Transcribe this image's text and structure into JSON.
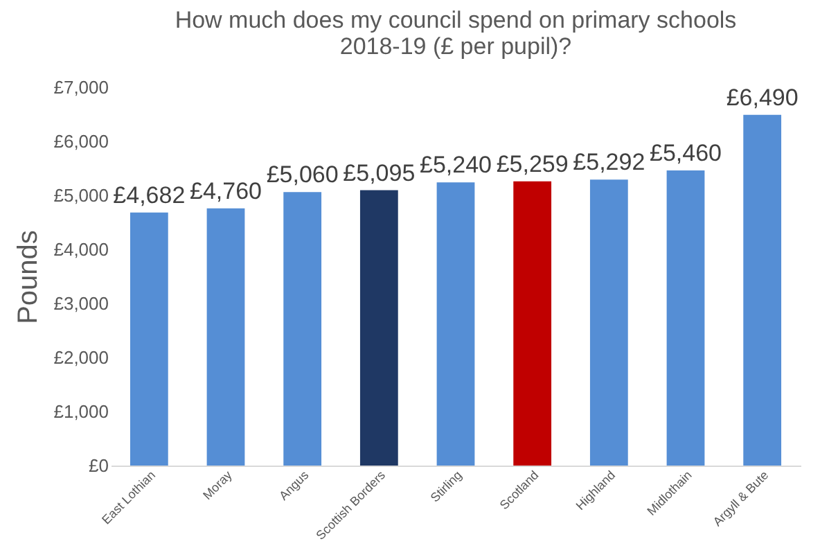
{
  "chart_data": {
    "type": "bar",
    "title": "How much does my council spend on primary schools 2018-19 (£ per pupil)?",
    "ylabel": "Pounds",
    "categories": [
      "East Lothian",
      "Moray",
      "Angus",
      "Scottish Borders",
      "Stirling",
      "Scotland",
      "Highland",
      "Midlothain",
      "Argyll & Bute"
    ],
    "values": [
      4682,
      4760,
      5060,
      5095,
      5240,
      5259,
      5292,
      5460,
      6490
    ],
    "colors": [
      "#558ed5",
      "#558ed5",
      "#558ed5",
      "#1f3864",
      "#558ed5",
      "#c00000",
      "#558ed5",
      "#558ed5",
      "#558ed5"
    ],
    "value_labels": [
      "£4,682",
      "£4,760",
      "£5,060",
      "£5,095",
      "£5,240",
      "£5,259",
      "£5,292",
      "£5,460",
      "£6,490"
    ],
    "ylim": [
      0,
      7000
    ],
    "yticks": [
      {
        "value": 0,
        "label": "£0"
      },
      {
        "value": 1000,
        "label": "£1,000"
      },
      {
        "value": 2000,
        "label": "£2,000"
      },
      {
        "value": 3000,
        "label": "£3,000"
      },
      {
        "value": 4000,
        "label": "£4,000"
      },
      {
        "value": 5000,
        "label": "£5,000"
      },
      {
        "value": 6000,
        "label": "£6,000"
      },
      {
        "value": 7000,
        "label": "£7,000"
      }
    ],
    "grid": false,
    "legend": false
  }
}
